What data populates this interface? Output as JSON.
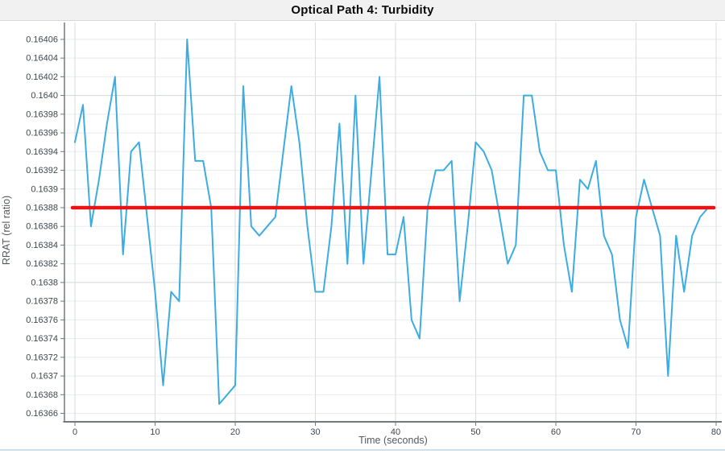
{
  "window": {
    "title": "Optical Path 4: Turbidity"
  },
  "chart_data": {
    "type": "line",
    "title": "Optical Path 4: Turbidity",
    "xlabel": "Time (seconds)",
    "ylabel": "RRAT (rel ratio)",
    "grid": true,
    "legend_position": "none",
    "xlim": [
      -1.31,
      80.7
    ],
    "ylim": [
      0.163651,
      0.164078
    ],
    "x_ticks": [
      {
        "label": "0",
        "value": 0
      },
      {
        "label": "10",
        "value": 10
      },
      {
        "label": "20",
        "value": 20
      },
      {
        "label": "30",
        "value": 30
      },
      {
        "label": "40",
        "value": 40
      },
      {
        "label": "50",
        "value": 50
      },
      {
        "label": "60",
        "value": 60
      },
      {
        "label": "70",
        "value": 70
      },
      {
        "label": "80",
        "value": 80
      }
    ],
    "y_ticks": [
      {
        "label": "0.16406",
        "value": 0.16406,
        "major": false
      },
      {
        "label": "0.16404",
        "value": 0.16404,
        "major": false
      },
      {
        "label": "0.16402",
        "value": 0.16402,
        "major": false
      },
      {
        "label": "0.1640",
        "value": 0.164,
        "major": true
      },
      {
        "label": "0.16398",
        "value": 0.16398,
        "major": false
      },
      {
        "label": "0.16396",
        "value": 0.16396,
        "major": false
      },
      {
        "label": "0.16394",
        "value": 0.16394,
        "major": false
      },
      {
        "label": "0.16392",
        "value": 0.16392,
        "major": false
      },
      {
        "label": "0.1639",
        "value": 0.1639,
        "major": false
      },
      {
        "label": "0.16388",
        "value": 0.16388,
        "major": false
      },
      {
        "label": "0.16386",
        "value": 0.16386,
        "major": false
      },
      {
        "label": "0.16384",
        "value": 0.16384,
        "major": false
      },
      {
        "label": "0.16382",
        "value": 0.16382,
        "major": false
      },
      {
        "label": "0.1638",
        "value": 0.1638,
        "major": true
      },
      {
        "label": "0.16378",
        "value": 0.16378,
        "major": false
      },
      {
        "label": "0.16376",
        "value": 0.16376,
        "major": false
      },
      {
        "label": "0.16374",
        "value": 0.16374,
        "major": false
      },
      {
        "label": "0.16372",
        "value": 0.16372,
        "major": false
      },
      {
        "label": "0.1637",
        "value": 0.1637,
        "major": false
      },
      {
        "label": "0.16368",
        "value": 0.16368,
        "major": false
      },
      {
        "label": "0.16366",
        "value": 0.16366,
        "major": false
      }
    ],
    "series": [
      {
        "name": "RRAT",
        "color": "#3cace2",
        "line_width": 2,
        "x": [
          0,
          1,
          2,
          3,
          4,
          5,
          6,
          7,
          8,
          9,
          10,
          11,
          12,
          13,
          14,
          15,
          16,
          17,
          18,
          19,
          20,
          21,
          22,
          23,
          24,
          25,
          26,
          27,
          28,
          29,
          30,
          31,
          32,
          33,
          34,
          35,
          36,
          37,
          38,
          39,
          40,
          41,
          42,
          43,
          44,
          45,
          46,
          47,
          48,
          49,
          50,
          51,
          52,
          53,
          54,
          55,
          56,
          57,
          58,
          59,
          60,
          61,
          62,
          63,
          64,
          65,
          66,
          67,
          68,
          69,
          70,
          71,
          72,
          73,
          74,
          75,
          76,
          77,
          78,
          79
        ],
        "values": [
          0.16395,
          0.16399,
          0.16386,
          0.16391,
          0.16397,
          0.16402,
          0.16383,
          0.16394,
          0.16395,
          0.16387,
          0.16379,
          0.16369,
          0.16379,
          0.16378,
          0.16406,
          0.16393,
          0.16393,
          0.16388,
          0.16367,
          0.16368,
          0.16369,
          0.16401,
          0.16386,
          0.16385,
          0.16386,
          0.16387,
          0.16394,
          0.16401,
          0.16395,
          0.16386,
          0.16379,
          0.16379,
          0.16386,
          0.16397,
          0.16382,
          0.164,
          0.16382,
          0.16392,
          0.16402,
          0.16383,
          0.16383,
          0.16387,
          0.16376,
          0.16374,
          0.16388,
          0.16392,
          0.16392,
          0.16393,
          0.16378,
          0.16386,
          0.16395,
          0.16394,
          0.16392,
          0.16387,
          0.16382,
          0.16384,
          0.164,
          0.164,
          0.16394,
          0.16392,
          0.16392,
          0.16384,
          0.16379,
          0.16391,
          0.1639,
          0.16393,
          0.16385,
          0.16383,
          0.16376,
          0.16373,
          0.16387,
          0.16391,
          0.16388,
          0.16385,
          0.1637,
          0.16385,
          0.16379,
          0.16385,
          0.16387,
          0.16388
        ]
      }
    ],
    "mean_line": {
      "value": 0.16388,
      "color": "#e81414",
      "line_width": 4.5,
      "x_start": -0.3,
      "x_end": 79.7
    }
  },
  "colors": {
    "titlebar_bg": "#f1f1f1",
    "titlebar_border": "#d9d9d9",
    "plot_bg": "#ffffff",
    "grid_minor": "#e9ebed",
    "grid_major": "#d2d6da",
    "grid_vertical": "#d9dcdf",
    "axis": "#73787c",
    "tick_label": "#3f464c",
    "axis_label": "#54595e",
    "bottom_edge": "#cfdfee"
  }
}
